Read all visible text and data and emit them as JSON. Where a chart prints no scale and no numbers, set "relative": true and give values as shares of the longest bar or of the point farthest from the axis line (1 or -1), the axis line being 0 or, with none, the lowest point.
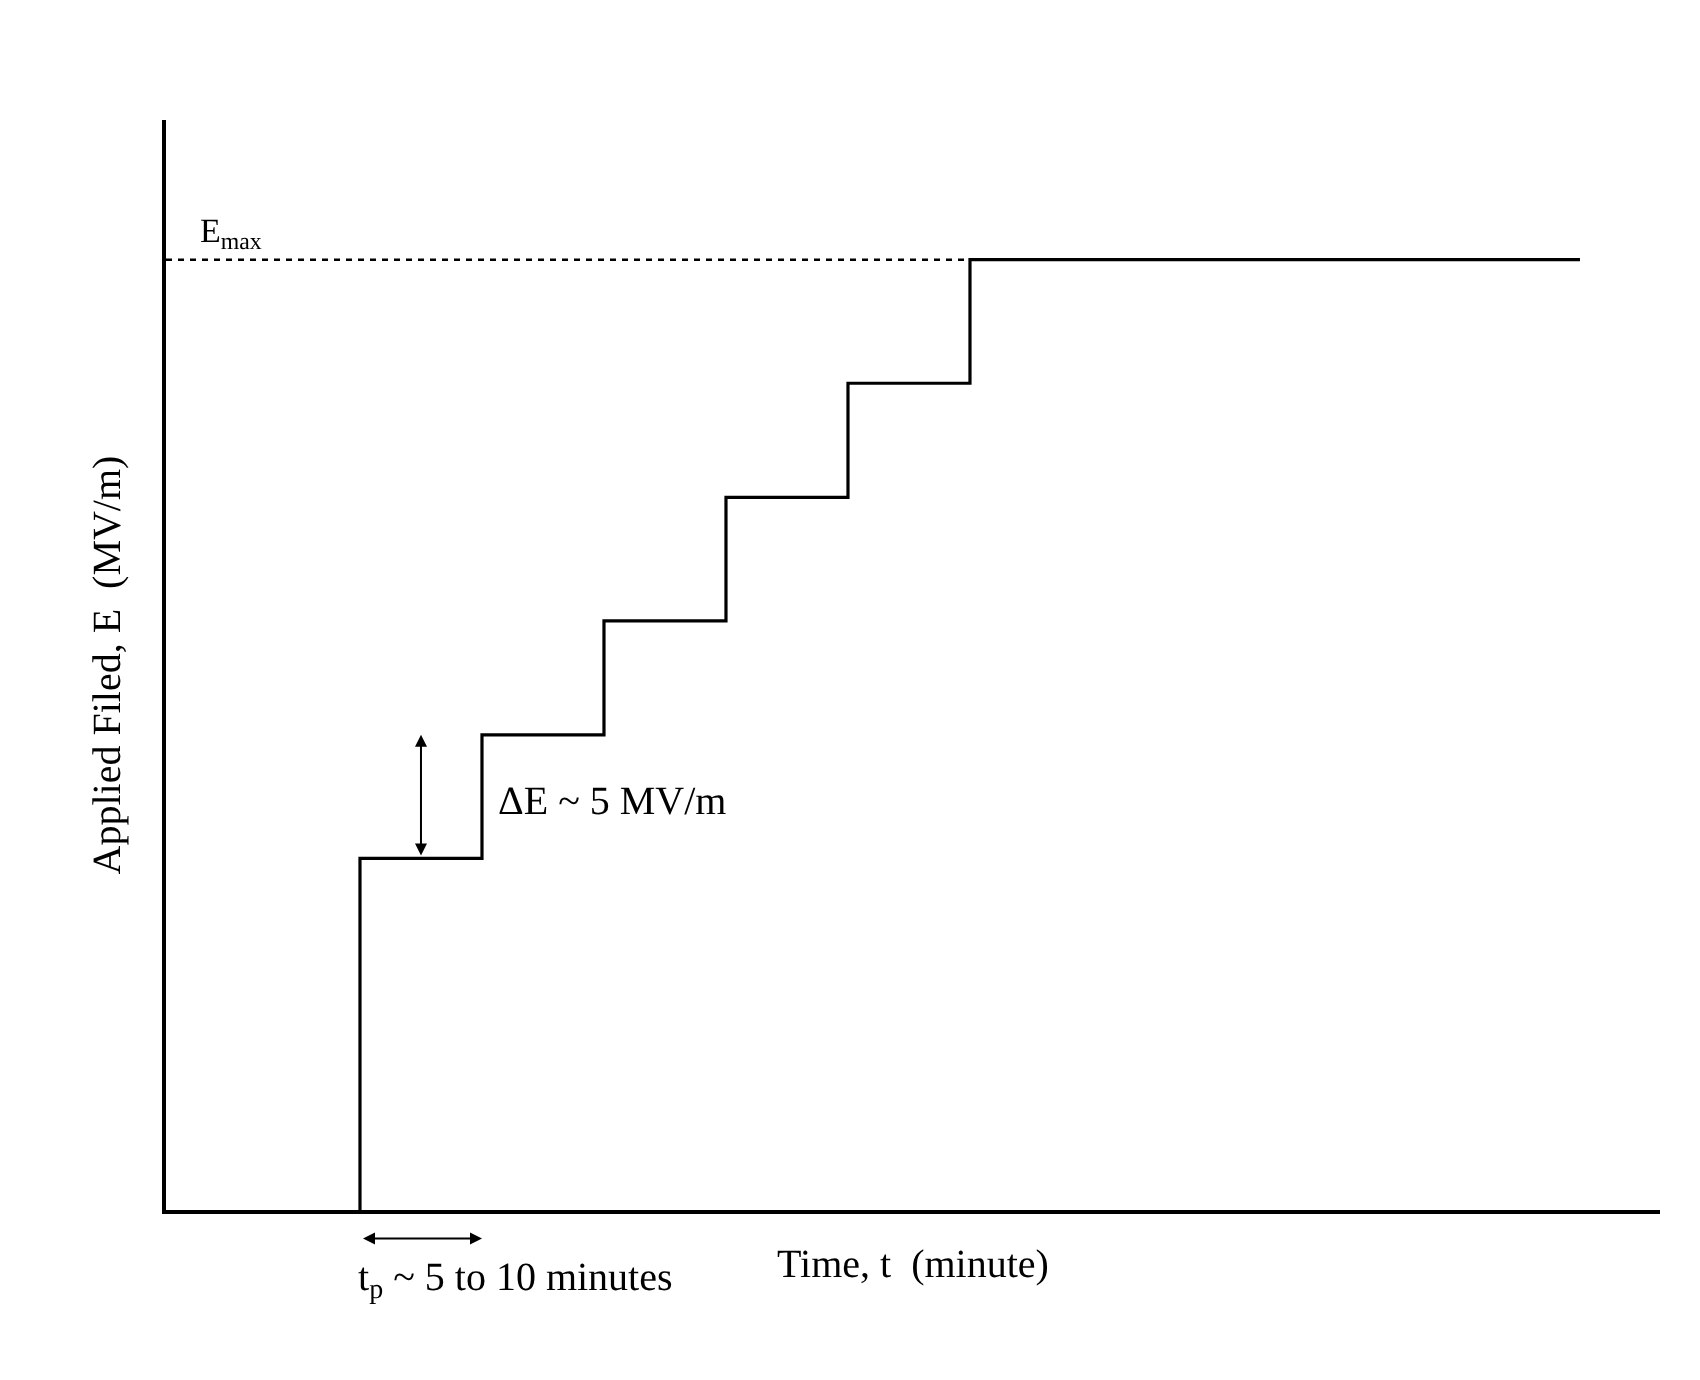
{
  "chart_data": {
    "type": "step",
    "relative": true,
    "xlabel": "Time, t  (minute)",
    "ylabel": "Applied Filed, E  (MV/m)",
    "categories": [
      null,
      null,
      null,
      null,
      null,
      null,
      null,
      null,
      null,
      null,
      null
    ],
    "series": [
      {
        "color": "#000000",
        "values": [
          0,
          0.37,
          0.5,
          0.62,
          0.75,
          0.87,
          1,
          1,
          1,
          1,
          1
        ]
      }
    ],
    "ref_lines": [
      {
        "axis": "y",
        "value": 1,
        "label": "E$_{max}$",
        "color": "#000000",
        "line_style": "dotted"
      }
    ],
    "annotations": [
      "ΔE ~ 5 MV/m",
      "t$_{p}$ ~ 5 to 10 minutes"
    ],
    "marker": "none",
    "line_style": "solid"
  }
}
